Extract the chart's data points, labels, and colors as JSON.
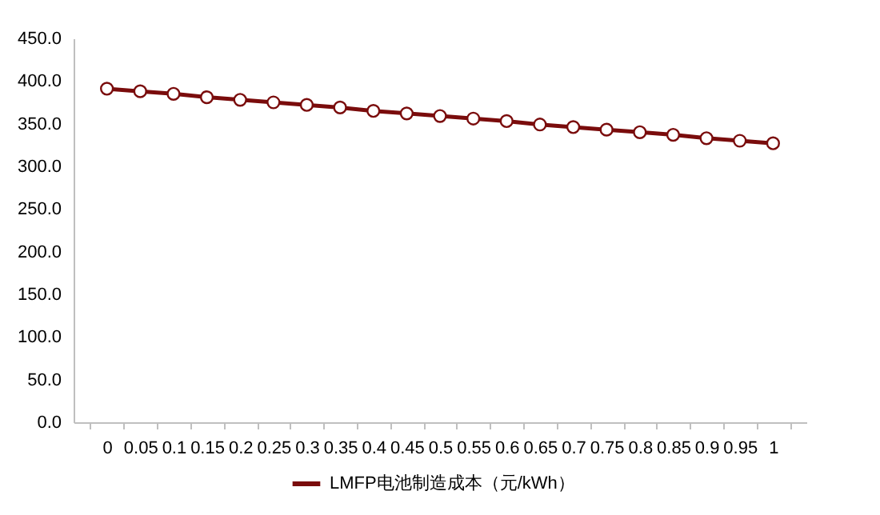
{
  "chart_data": {
    "type": "line",
    "categories": [
      "0",
      "0.05",
      "0.1",
      "0.15",
      "0.2",
      "0.25",
      "0.3",
      "0.35",
      "0.4",
      "0.45",
      "0.5",
      "0.55",
      "0.6",
      "0.65",
      "0.7",
      "0.75",
      "0.8",
      "0.85",
      "0.9",
      "0.95",
      "1"
    ],
    "series": [
      {
        "name": "LMFP电池制造成本（元/kWh）",
        "color": "#7a0c0c",
        "values": [
          391,
          388,
          385,
          381,
          378,
          375,
          372,
          369,
          365,
          362,
          359,
          356,
          353,
          349,
          346,
          343,
          340,
          337,
          333,
          330,
          327
        ]
      }
    ],
    "ylim": [
      0,
      450
    ],
    "yticks": [
      {
        "value": 0,
        "label": "0.0"
      },
      {
        "value": 50,
        "label": "50.0"
      },
      {
        "value": 100,
        "label": "100.0"
      },
      {
        "value": 150,
        "label": "150.0"
      },
      {
        "value": 200,
        "label": "200.0"
      },
      {
        "value": 250,
        "label": "250.0"
      },
      {
        "value": 300,
        "label": "300.0"
      },
      {
        "value": 350,
        "label": "350.0"
      },
      {
        "value": 400,
        "label": "400.0"
      },
      {
        "value": 450,
        "label": "450.0"
      }
    ],
    "grid": false,
    "legend": "bottom",
    "marker": "circle",
    "line_style": "solid"
  }
}
